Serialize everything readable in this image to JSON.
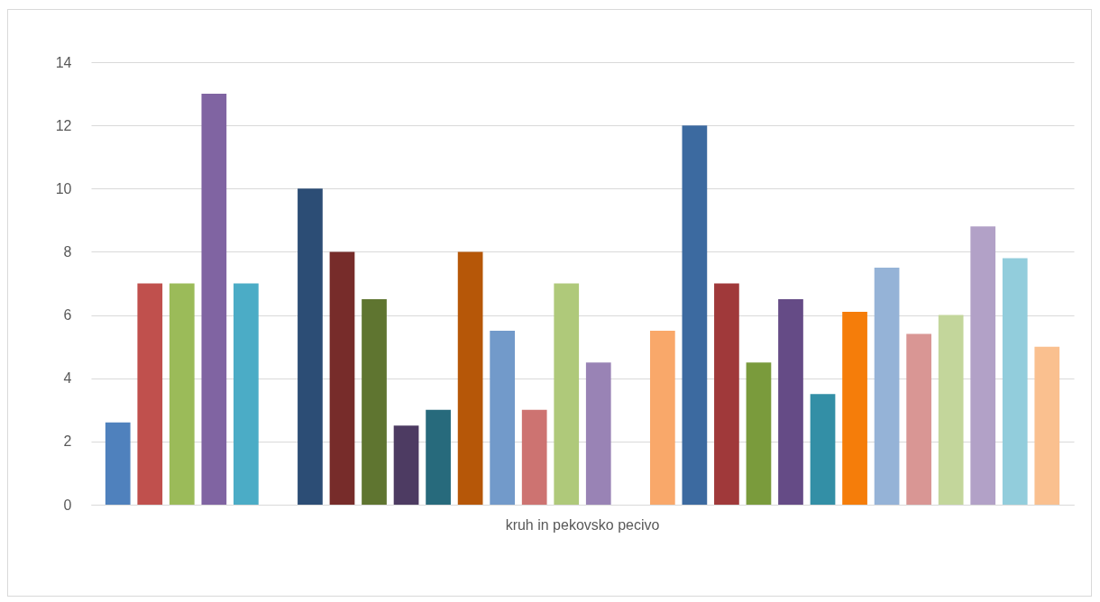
{
  "chart_data": {
    "type": "bar",
    "categories": [
      "kruh in pekovsko pecivo"
    ],
    "series": [
      {
        "color": "#4f81bd",
        "values": [
          2.6
        ]
      },
      {
        "color": "#c0504d",
        "values": [
          7
        ]
      },
      {
        "color": "#9bbb59",
        "values": [
          7
        ]
      },
      {
        "color": "#8064a2",
        "values": [
          13
        ]
      },
      {
        "color": "#4bacc6",
        "values": [
          7
        ]
      },
      {
        "color": "#ffffff",
        "values": [
          null
        ]
      },
      {
        "color": "#2c4d75",
        "values": [
          10
        ]
      },
      {
        "color": "#772c2a",
        "values": [
          8
        ]
      },
      {
        "color": "#5f7530",
        "values": [
          6.5
        ]
      },
      {
        "color": "#4d3b62",
        "values": [
          2.5
        ]
      },
      {
        "color": "#276a7c",
        "values": [
          3
        ]
      },
      {
        "color": "#b65708",
        "values": [
          8
        ]
      },
      {
        "color": "#729aca",
        "values": [
          5.5
        ]
      },
      {
        "color": "#cd7371",
        "values": [
          3
        ]
      },
      {
        "color": "#afc97a",
        "values": [
          7
        ]
      },
      {
        "color": "#9983b5",
        "values": [
          4.5
        ]
      },
      {
        "color": "#ffffff",
        "values": [
          null
        ]
      },
      {
        "color": "#f9a86a",
        "values": [
          5.5
        ]
      },
      {
        "color": "#3c6aa0",
        "values": [
          12
        ]
      },
      {
        "color": "#a0393a",
        "values": [
          7
        ]
      },
      {
        "color": "#7a9b3c",
        "values": [
          4.5
        ]
      },
      {
        "color": "#654b86",
        "values": [
          6.5
        ]
      },
      {
        "color": "#338fa6",
        "values": [
          3.5
        ]
      },
      {
        "color": "#f57d0a",
        "values": [
          6.1
        ]
      },
      {
        "color": "#95b3d7",
        "values": [
          7.5
        ]
      },
      {
        "color": "#d99694",
        "values": [
          5.4
        ]
      },
      {
        "color": "#c3d69b",
        "values": [
          6
        ]
      },
      {
        "color": "#b2a1c7",
        "values": [
          8.8
        ]
      },
      {
        "color": "#92cddc",
        "values": [
          7.8
        ]
      },
      {
        "color": "#fac08f",
        "values": [
          5
        ]
      }
    ],
    "ylim": [
      0,
      14
    ],
    "yticks": [
      0,
      2,
      4,
      6,
      8,
      10,
      12,
      14
    ],
    "grid": "y"
  }
}
